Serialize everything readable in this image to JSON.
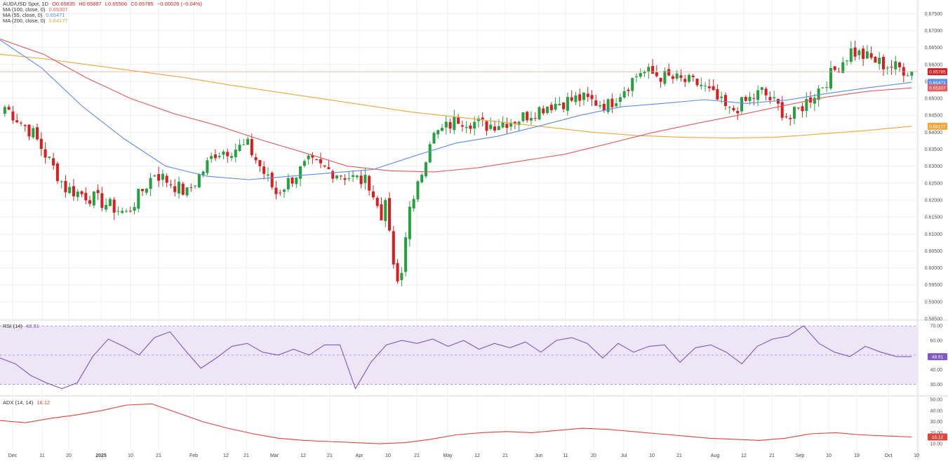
{
  "header": {
    "symbol": "AUD/USD Spot, 1D",
    "open": "O0.65835",
    "high": "H0.65887",
    "low": "L0.65566",
    "close": "C0.65785",
    "change": "−0.00026 (−0.04%)"
  },
  "ma_legend": [
    {
      "label": "MA (100, close, 0)",
      "value": "0.65307",
      "color": "#e45c5c"
    },
    {
      "label": "MA (55, close, 0)",
      "value": "0.65471",
      "color": "#5b8def"
    },
    {
      "label": "MA (200, close, 0)",
      "value": "0.64177",
      "color": "#f0a63b"
    }
  ],
  "rsi_panel": {
    "label": "RSI (14)",
    "value": "48.91",
    "color": "#7e57c2"
  },
  "adx_panel": {
    "label": "ADX (14, 14)",
    "value": "16.12",
    "color": "#e0443c"
  },
  "colors": {
    "up": "#26a041",
    "down": "#d81f1f",
    "grid": "#eef0f3"
  },
  "price_axis": {
    "ticks": [
      "0.67500",
      "0.67000",
      "0.66500",
      "0.66000",
      "0.65500",
      "0.65000",
      "0.64500",
      "0.64000",
      "0.63500",
      "0.63000",
      "0.62500",
      "0.62000",
      "0.61500",
      "0.61000",
      "0.60500",
      "0.60000",
      "0.59500",
      "0.59000",
      "0.58500"
    ],
    "range": [
      0.585,
      0.679
    ],
    "badges": [
      {
        "value": "0.65785",
        "text": "0.65785",
        "bg": "#d81f1f"
      },
      {
        "value": "0.65471",
        "text": "0.65471",
        "bg": "#5b8def"
      },
      {
        "value": "0.65307",
        "text": "0.65307",
        "bg": "#e45c5c"
      },
      {
        "value": "0.64177",
        "text": "0.64177",
        "bg": "#f0a63b"
      }
    ]
  },
  "rsi_axis": {
    "ticks": [
      "70.00",
      "60.00",
      "50.00",
      "40.00",
      "30.00"
    ],
    "range": [
      23,
      73
    ],
    "bands": [
      70,
      30
    ],
    "mid": 50,
    "badge": "48.91"
  },
  "adx_axis": {
    "ticks": [
      "50.00",
      "40.00",
      "30.00",
      "20.00",
      "10.00"
    ],
    "range": [
      5,
      52
    ],
    "badge": "16.12"
  },
  "x_axis_labels": [
    "Dec",
    "11",
    "20",
    "2025",
    "10",
    "21",
    "Feb",
    "12",
    "21",
    "Mar",
    "12",
    "21",
    "Apr",
    "10",
    "21",
    "May",
    "12",
    "21",
    "Jun",
    "11",
    "20",
    "Jul",
    "10",
    "21",
    "Aug",
    "12",
    "21",
    "Sep",
    "10",
    "19",
    "Oct",
    "10"
  ],
  "chart_data": {
    "type": "candlestick",
    "title": "AUD/USD Spot, 1D",
    "ylim": [
      0.585,
      0.679
    ],
    "anchors": [
      {
        "x": "Dec",
        "price": 0.6475
      },
      {
        "x": "11",
        "price": 0.6395
      },
      {
        "x": "20",
        "price": 0.6235
      },
      {
        "x": "2025",
        "price": 0.6205
      },
      {
        "x": "10",
        "price": 0.616
      },
      {
        "x": "21",
        "price": 0.628
      },
      {
        "x": "Feb",
        "price": 0.622
      },
      {
        "x": "12",
        "price": 0.634
      },
      {
        "x": "21",
        "price": 0.636
      },
      {
        "x": "Mar",
        "price": 0.622
      },
      {
        "x": "12",
        "price": 0.631
      },
      {
        "x": "21",
        "price": 0.628
      },
      {
        "x": "Apr",
        "price": 0.625
      },
      {
        "x": "10",
        "price": 0.6
      },
      {
        "x": "21",
        "price": 0.638
      },
      {
        "x": "May",
        "price": 0.644
      },
      {
        "x": "12",
        "price": 0.642
      },
      {
        "x": "21",
        "price": 0.644
      },
      {
        "x": "Jun",
        "price": 0.648
      },
      {
        "x": "11",
        "price": 0.65
      },
      {
        "x": "20",
        "price": 0.648
      },
      {
        "x": "Jul",
        "price": 0.658
      },
      {
        "x": "10",
        "price": 0.656
      },
      {
        "x": "21",
        "price": 0.654
      },
      {
        "x": "Aug",
        "price": 0.646
      },
      {
        "x": "12",
        "price": 0.652
      },
      {
        "x": "21",
        "price": 0.644
      },
      {
        "x": "Sep",
        "price": 0.654
      },
      {
        "x": "10",
        "price": 0.664
      },
      {
        "x": "19",
        "price": 0.66
      },
      {
        "x": "Oct",
        "price": 0.658
      }
    ],
    "ma100": [
      0.6675,
      0.663,
      0.656,
      0.65,
      0.6455,
      0.642,
      0.6378,
      0.634,
      0.63,
      0.6286,
      0.6283,
      0.6295,
      0.6315,
      0.6335,
      0.6366,
      0.6398,
      0.6425,
      0.645,
      0.6477,
      0.6503,
      0.6521,
      0.65307
    ],
    "ma55": [
      0.6672,
      0.659,
      0.6475,
      0.638,
      0.63,
      0.627,
      0.626,
      0.627,
      0.628,
      0.629,
      0.633,
      0.6368,
      0.6388,
      0.6418,
      0.645,
      0.6475,
      0.6485,
      0.6496,
      0.6485,
      0.6495,
      0.6515,
      0.6532,
      0.65471
    ],
    "ma200": [
      0.663,
      0.6616,
      0.6598,
      0.658,
      0.6562,
      0.654,
      0.652,
      0.65,
      0.648,
      0.646,
      0.6445,
      0.643,
      0.6415,
      0.64,
      0.639,
      0.6385,
      0.6383,
      0.6385,
      0.6395,
      0.6405,
      0.64177
    ],
    "rsi": [
      48,
      44,
      36,
      31,
      27,
      31,
      49,
      61,
      56,
      50,
      62,
      66,
      53,
      41,
      48,
      56,
      58,
      52,
      50,
      54,
      50,
      57,
      57,
      27,
      45,
      57,
      60,
      58,
      61,
      56,
      60,
      54,
      58,
      55,
      59,
      52,
      60,
      62,
      58,
      48,
      58,
      52,
      56,
      57,
      45,
      55,
      57,
      52,
      44,
      56,
      61,
      63,
      70,
      58,
      52,
      49,
      56,
      52,
      49,
      48.91
    ],
    "adx": [
      31,
      29,
      33,
      36,
      40,
      45,
      46,
      38,
      30,
      24,
      19,
      15,
      13,
      12,
      11,
      10,
      11,
      14,
      18,
      20,
      21,
      20,
      22,
      24,
      23,
      21,
      19,
      17,
      15,
      14,
      13,
      15,
      19,
      20,
      18,
      17,
      16.12
    ]
  }
}
